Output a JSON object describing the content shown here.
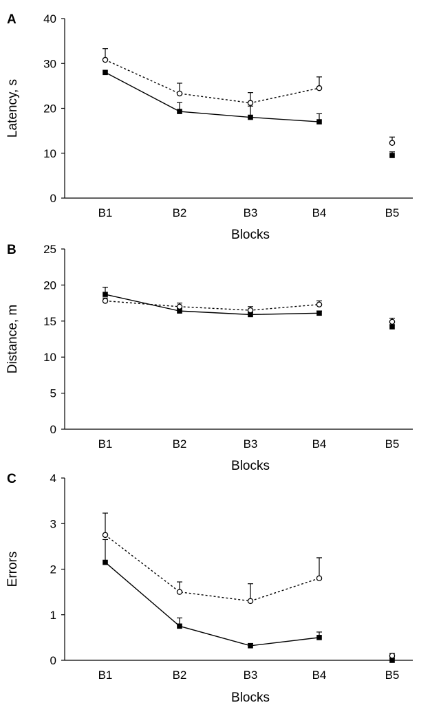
{
  "chart_data": [
    {
      "type": "line",
      "panel": "A",
      "categories": [
        "B1",
        "B2",
        "B3",
        "B4",
        "B5"
      ],
      "xlabel": "Blocks",
      "ylabel": "Latency, s",
      "ylim": [
        0,
        40
      ],
      "yticks": [
        0,
        10,
        20,
        30,
        40
      ],
      "series": [
        {
          "marker": "filled-square",
          "line": "solid",
          "values": [
            28,
            19.3,
            18,
            17,
            9.5
          ],
          "errors": [
            0,
            2,
            2.5,
            1.8,
            0.8
          ],
          "connected_to": 4
        },
        {
          "marker": "open-circle",
          "line": "dotted",
          "values": [
            30.8,
            23.3,
            21.2,
            24.5,
            12.3
          ],
          "errors": [
            2.5,
            2.3,
            2.3,
            2.5,
            1.3
          ],
          "connected_to": 4
        }
      ]
    },
    {
      "type": "line",
      "panel": "B",
      "categories": [
        "B1",
        "B2",
        "B3",
        "B4",
        "B5"
      ],
      "xlabel": "Blocks",
      "ylabel": "Distance, m",
      "ylim": [
        0,
        25
      ],
      "yticks": [
        0,
        5,
        10,
        15,
        20,
        25
      ],
      "series": [
        {
          "marker": "filled-square",
          "line": "solid",
          "values": [
            18.7,
            16.4,
            15.9,
            16.1,
            14.2
          ],
          "errors": [
            1,
            0.4,
            0.3,
            0.3,
            0.3
          ],
          "connected_to": 4
        },
        {
          "marker": "open-circle",
          "line": "dotted",
          "values": [
            17.8,
            17.0,
            16.5,
            17.3,
            14.9
          ],
          "errors": [
            0.4,
            0.5,
            0.5,
            0.5,
            0.5
          ],
          "connected_to": 4
        }
      ]
    },
    {
      "type": "line",
      "panel": "C",
      "categories": [
        "B1",
        "B2",
        "B3",
        "B4",
        "B5"
      ],
      "xlabel": "Blocks",
      "ylabel": "Errors",
      "ylim": [
        0,
        4
      ],
      "yticks": [
        0,
        1,
        2,
        3,
        4
      ],
      "series": [
        {
          "marker": "filled-square",
          "line": "solid",
          "values": [
            2.15,
            0.75,
            0.32,
            0.5,
            0.0
          ],
          "errors": [
            0.5,
            0.18,
            0.05,
            0.12,
            0.05
          ],
          "connected_to": 4
        },
        {
          "marker": "open-circle",
          "line": "dotted",
          "values": [
            2.75,
            1.5,
            1.3,
            1.8,
            0.1
          ],
          "errors": [
            0.48,
            0.22,
            0.38,
            0.45,
            0.05
          ],
          "connected_to": 4
        }
      ]
    }
  ]
}
